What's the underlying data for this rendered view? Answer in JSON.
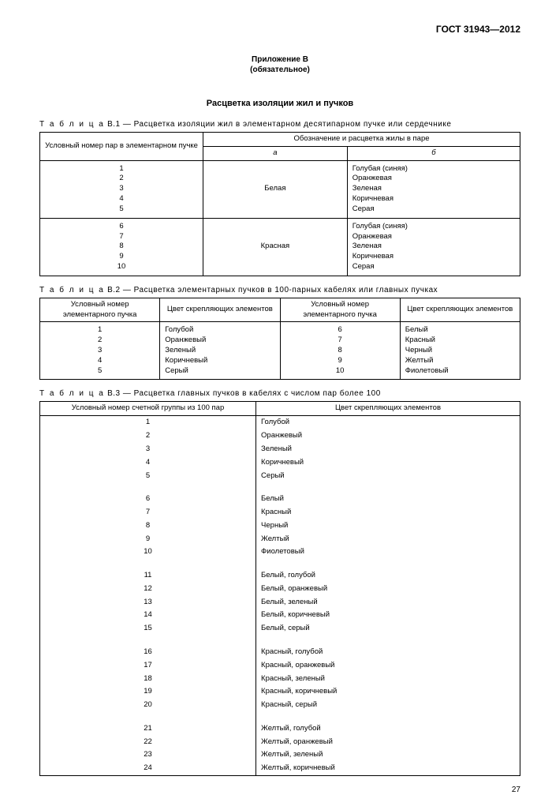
{
  "doc_id": "ГОСТ 31943—2012",
  "appendix": {
    "line1": "Приложение В",
    "line2": "(обязательное)"
  },
  "section_title": "Расцветка изоляции жил и пучков",
  "page_number": "27",
  "t1": {
    "caption_prefix": "Т а б л и ц а",
    "caption": "В.1 — Расцветка изоляции жил в элементарном десятипарном пучке или сердечнике",
    "header_left": "Условный номер пар в элементарном пучке",
    "header_group": "Обозначение и расцветка жилы в паре",
    "col_a": "а",
    "col_b": "б",
    "groups": [
      {
        "nums": [
          "1",
          "2",
          "3",
          "4",
          "5"
        ],
        "a": "Белая",
        "b": [
          "Голубая (синяя)",
          "Оранжевая",
          "Зеленая",
          "Коричневая",
          "Серая"
        ]
      },
      {
        "nums": [
          "6",
          "7",
          "8",
          "9",
          "10"
        ],
        "a": "Красная",
        "b": [
          "Голубая (синяя)",
          "Оранжевая",
          "Зеленая",
          "Коричневая",
          "Серая"
        ]
      }
    ]
  },
  "t2": {
    "caption_prefix": "Т а б л и ц а",
    "caption": "В.2 — Расцветка элементарных пучков в 100-парных кабелях или главных пучках",
    "h1": "Условный номер элементарного пучка",
    "h2": "Цвет скрепляющих элементов",
    "h3": "Условный номер элементарного пучка",
    "h4": "Цвет скрепляющих элементов",
    "rows": [
      [
        "1",
        "Голубой",
        "6",
        "Белый"
      ],
      [
        "2",
        "Оранжевый",
        "7",
        "Красный"
      ],
      [
        "3",
        "Зеленый",
        "8",
        "Черный"
      ],
      [
        "4",
        "Коричневый",
        "9",
        "Желтый"
      ],
      [
        "5",
        "Серый",
        "10",
        "Фиолетовый"
      ]
    ]
  },
  "t3": {
    "caption_prefix": "Т а б л и ц а",
    "caption": "В.3 — Расцветка главных пучков в кабелях с числом пар более 100",
    "h1": "Условный номер счетной группы из 100 пар",
    "h2": "Цвет скрепляющих элементов",
    "groups": [
      [
        [
          "1",
          "Голубой"
        ],
        [
          "2",
          "Оранжевый"
        ],
        [
          "3",
          "Зеленый"
        ],
        [
          "4",
          "Коричневый"
        ],
        [
          "5",
          "Серый"
        ]
      ],
      [
        [
          "6",
          "Белый"
        ],
        [
          "7",
          "Красный"
        ],
        [
          "8",
          "Черный"
        ],
        [
          "9",
          "Желтый"
        ],
        [
          "10",
          "Фиолетовый"
        ]
      ],
      [
        [
          "11",
          "Белый, голубой"
        ],
        [
          "12",
          "Белый, оранжевый"
        ],
        [
          "13",
          "Белый, зеленый"
        ],
        [
          "14",
          "Белый, коричневый"
        ],
        [
          "15",
          "Белый, серый"
        ]
      ],
      [
        [
          "16",
          "Красный, голубой"
        ],
        [
          "17",
          "Красный, оранжевый"
        ],
        [
          "18",
          "Красный, зеленый"
        ],
        [
          "19",
          "Красный, коричневый"
        ],
        [
          "20",
          "Красный, серый"
        ]
      ],
      [
        [
          "21",
          "Желтый, голубой"
        ],
        [
          "22",
          "Желтый, оранжевый"
        ],
        [
          "23",
          "Желтый, зеленый"
        ],
        [
          "24",
          "Желтый, коричневый"
        ]
      ]
    ]
  }
}
